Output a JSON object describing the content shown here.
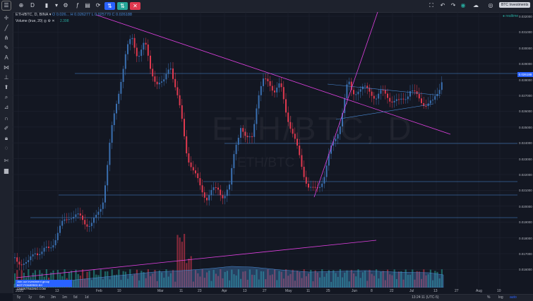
{
  "toolbar": {
    "interval": "D",
    "tooltip": "BTC Investments"
  },
  "legend": {
    "symbol": "ETH/BTC, D, BINA",
    "open": "O 0.026...",
    "high": "H 0.026277",
    "low": "L 0.025770",
    "close": "C 0.026188",
    "volume_label": "Volume (true, 20)",
    "volume_value": "2.398"
  },
  "status": {
    "live": "● realtime"
  },
  "watermark": {
    "line1": "ETH/BTC, D",
    "line2": "ETH/BTC"
  },
  "banner": {
    "line1": "Join our investment group",
    "line2": "BOT POWERED BY CHAINTRADING.COM"
  },
  "price_axis": {
    "labels": [
      "0.032000",
      "0.031000",
      "0.030000",
      "0.029000",
      "0.028000",
      "0.027000",
      "0.026000",
      "0.025000",
      "0.024000",
      "0.023000",
      "0.022000",
      "0.021000",
      "0.020000",
      "0.019000",
      "0.018000",
      "0.017000",
      "0.016000"
    ],
    "current": "0.026188"
  },
  "time_axis": {
    "labels": [
      "2020",
      "13",
      "Feb",
      "10",
      "Mar",
      "11",
      "23",
      "Apr",
      "13",
      "27",
      "May",
      "11",
      "25",
      "Jun",
      "8",
      "22",
      "Jul",
      "13",
      "27",
      "Aug",
      "10"
    ]
  },
  "bottom_bar": {
    "ranges": [
      "5y",
      "1y",
      "6m",
      "3m",
      "1m",
      "5d",
      "1d"
    ],
    "clock": "13:24:11 (UTC-5)",
    "percent": "%",
    "log": "log",
    "auto": "auto"
  },
  "colors": {
    "up": "#3a6fb0",
    "down": "#e0394f",
    "trend": "#e040e0",
    "line": "#4a8cd8",
    "accent": "#2962ff"
  }
}
